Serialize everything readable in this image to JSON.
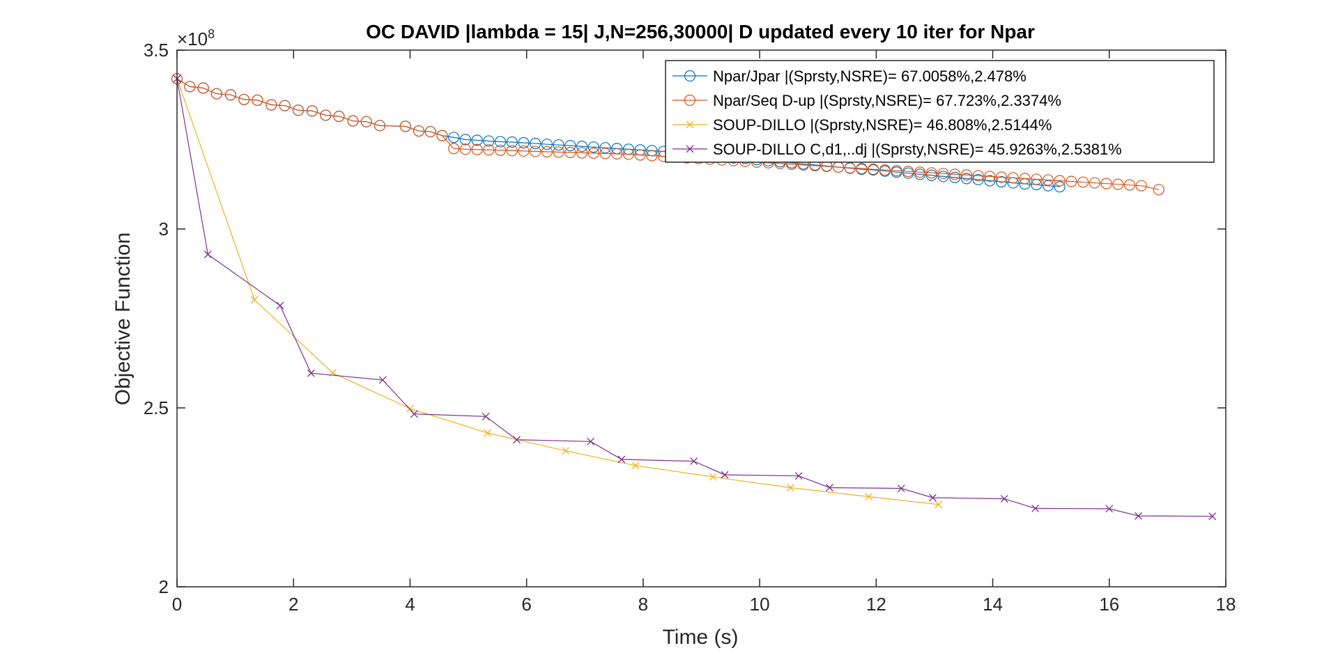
{
  "chart_data": {
    "type": "line",
    "title": "OC DAVID |lambda = 15| J,N=256,30000| D updated every 10 iter for Npar",
    "xlabel": "Time (s)",
    "ylabel": "Objective Function",
    "y_exponent_base": "×10",
    "y_exponent_power": "8",
    "xlim": [
      0,
      18
    ],
    "ylim": [
      200000000,
      350000000
    ],
    "y_scale_divisor": 100000000,
    "xticks": [
      0,
      2,
      4,
      6,
      8,
      10,
      12,
      14,
      16,
      18
    ],
    "yticks": [
      200000000,
      250000000,
      300000000,
      350000000
    ],
    "xtick_labels": [
      "0",
      "2",
      "4",
      "6",
      "8",
      "10",
      "12",
      "14",
      "16",
      "18"
    ],
    "ytick_labels": [
      "2",
      "2.5",
      "3",
      "3.5"
    ],
    "grid": false,
    "box": true,
    "legend_position": "top-right",
    "series": [
      {
        "name": "Npar/Jpar |(Sprsty,NSRE)= 67.0058%,2.478%",
        "color": "#0072BD",
        "marker": "circle",
        "x": [
          0.0,
          0.22,
          0.45,
          0.68,
          0.92,
          1.15,
          1.38,
          1.62,
          1.85,
          2.08,
          2.32,
          2.55,
          2.78,
          3.02,
          3.25,
          3.48,
          3.92,
          4.15,
          4.35,
          4.55,
          4.75,
          4.95,
          5.15,
          5.35,
          5.55,
          5.75,
          5.95,
          6.15,
          6.35,
          6.55,
          6.75,
          6.95,
          7.15,
          7.35,
          7.55,
          7.75,
          7.95,
          8.15,
          8.35,
          8.55,
          8.75,
          8.95,
          9.15,
          9.35,
          9.55,
          9.75,
          9.95,
          10.15,
          10.35,
          10.55,
          10.75,
          10.95,
          11.15,
          11.35,
          11.55,
          11.75,
          11.95,
          12.15,
          12.35,
          12.55,
          12.75,
          12.95,
          13.15,
          13.35,
          13.55,
          13.75,
          13.95,
          14.15,
          14.35,
          14.55,
          14.75,
          14.95,
          15.15
        ],
        "y": [
          342000000,
          339800000,
          339400000,
          337800000,
          337500000,
          336200000,
          336000000,
          334700000,
          334500000,
          333200000,
          333000000,
          331800000,
          331500000,
          330200000,
          330000000,
          328900000,
          328700000,
          327400000,
          327200000,
          326100000,
          325600000,
          325000000,
          324800000,
          324600000,
          324400000,
          324300000,
          324100000,
          323900000,
          323700000,
          323500000,
          323300000,
          323100000,
          322900000,
          322700000,
          322500000,
          322300000,
          322100000,
          321900000,
          321700000,
          321400000,
          321100000,
          320800000,
          320500000,
          320200000,
          319900000,
          319700000,
          319400000,
          319100000,
          318800000,
          318500000,
          318200000,
          317900000,
          317600000,
          317300000,
          317000000,
          316700000,
          316500000,
          316200000,
          315900000,
          315600000,
          315300000,
          315000000,
          314700000,
          314400000,
          314100000,
          313800000,
          313500000,
          313200000,
          312900000,
          312600000,
          312400000,
          312100000,
          311800000
        ]
      },
      {
        "name": "Npar/Seq D-up |(Sprsty,NSRE)= 67.723%,2.3374%",
        "color": "#D95319",
        "marker": "circle",
        "x": [
          0.0,
          0.22,
          0.45,
          0.68,
          0.92,
          1.15,
          1.38,
          1.62,
          1.85,
          2.08,
          2.32,
          2.55,
          2.78,
          3.02,
          3.25,
          3.48,
          3.92,
          4.15,
          4.35,
          4.55,
          4.75,
          4.95,
          5.15,
          5.35,
          5.55,
          5.75,
          5.95,
          6.15,
          6.35,
          6.55,
          6.75,
          6.95,
          7.15,
          7.35,
          7.55,
          7.75,
          7.95,
          8.15,
          8.35,
          8.55,
          8.75,
          8.95,
          9.15,
          9.35,
          9.55,
          9.75,
          9.95,
          10.15,
          10.35,
          10.55,
          10.75,
          10.95,
          11.15,
          11.35,
          11.55,
          11.75,
          11.95,
          12.15,
          12.35,
          12.55,
          12.75,
          12.95,
          13.15,
          13.35,
          13.55,
          13.75,
          13.95,
          14.15,
          14.35,
          14.55,
          14.75,
          14.95,
          15.15,
          15.35,
          15.55,
          15.75,
          15.95,
          16.15,
          16.35,
          16.55,
          16.85
        ],
        "y": [
          342000000,
          339800000,
          339400000,
          337800000,
          337500000,
          336200000,
          336000000,
          334700000,
          334500000,
          333200000,
          333000000,
          331800000,
          331500000,
          330200000,
          330000000,
          328900000,
          328700000,
          327400000,
          327200000,
          326100000,
          322500000,
          322300000,
          322200000,
          322100000,
          322000000,
          321900000,
          321800000,
          321700000,
          321600000,
          321500000,
          321400000,
          321300000,
          321200000,
          321100000,
          321000000,
          320900000,
          320700000,
          320500000,
          320300000,
          320100000,
          319900000,
          319700000,
          319500000,
          319300000,
          319100000,
          318900000,
          318700000,
          318500000,
          318300000,
          318100000,
          317900000,
          317700000,
          317500000,
          317300000,
          317100000,
          316900000,
          316700000,
          316500000,
          316300000,
          316100000,
          315900000,
          315700000,
          315500000,
          315300000,
          315100000,
          314900000,
          314700000,
          314500000,
          314300000,
          314100000,
          313900000,
          313700000,
          313500000,
          313300000,
          313100000,
          312900000,
          312700000,
          312500000,
          312300000,
          312100000,
          311000000
        ]
      },
      {
        "name": "SOUP-DILLO |(Sprsty,NSRE)= 46.808%,2.5144%",
        "color": "#EDB120",
        "marker": "x",
        "x": [
          0.0,
          1.33,
          2.67,
          4.0,
          5.33,
          6.67,
          7.87,
          9.2,
          10.53,
          11.87,
          13.07
        ],
        "y": [
          342000000,
          280200000,
          259800000,
          249800000,
          243000000,
          238000000,
          233900000,
          230700000,
          227700000,
          225200000,
          223000000
        ]
      },
      {
        "name": "SOUP-DILLO C,d1,..dj |(Sprsty,NSRE)= 45.9263%,2.5381%",
        "color": "#7E2F8E",
        "marker": "x",
        "x": [
          0.0,
          0.53,
          1.77,
          2.3,
          3.53,
          4.07,
          5.3,
          5.83,
          7.1,
          7.63,
          8.87,
          9.4,
          10.67,
          11.2,
          12.43,
          12.97,
          14.2,
          14.73,
          16.0,
          16.5,
          17.77
        ],
        "y": [
          342000000,
          292900000,
          278600000,
          259700000,
          257800000,
          248300000,
          247600000,
          241100000,
          240600000,
          235600000,
          235100000,
          231300000,
          231000000,
          227700000,
          227500000,
          224900000,
          224600000,
          221900000,
          221800000,
          219800000,
          219700000
        ]
      }
    ]
  }
}
